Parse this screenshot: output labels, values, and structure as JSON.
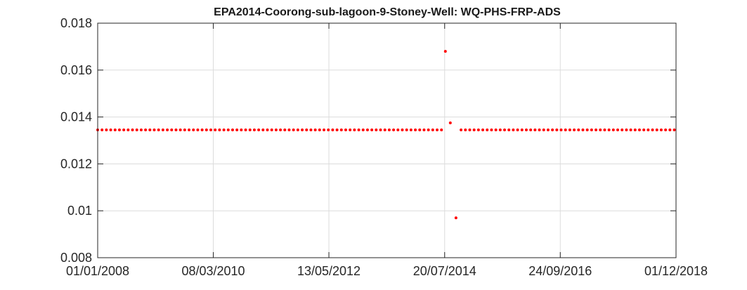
{
  "chart_data": {
    "type": "scatter",
    "title": "EPA2014-Coorong-sub-lagoon-9-Stoney-Well: WQ-PHS-FRP-ADS",
    "xlabel": "",
    "ylabel": "",
    "x_axis_type": "date",
    "xlim": [
      "2008-01-01",
      "2018-12-01"
    ],
    "ylim": [
      0.008,
      0.018
    ],
    "x_ticks": [
      "2008-01-01",
      "2010-03-08",
      "2012-05-13",
      "2014-07-20",
      "2016-09-24",
      "2018-12-01"
    ],
    "x_tick_labels": [
      "01/01/2008",
      "08/03/2010",
      "13/05/2012",
      "20/07/2014",
      "24/09/2016",
      "01/12/2018"
    ],
    "y_ticks": [
      0.008,
      0.01,
      0.012,
      0.014,
      0.016,
      0.018
    ],
    "y_tick_labels": [
      "0.008",
      "0.01",
      "0.012",
      "0.014",
      "0.016",
      "0.018"
    ],
    "grid": true,
    "marker_color": "#ff0000",
    "series": [
      {
        "baseline_value": 0.01345,
        "baseline_segments": [
          {
            "start": "2008-01-01",
            "end": "2014-07-15",
            "interval_days": 30
          },
          {
            "start": "2014-11-10",
            "end": "2018-12-01",
            "interval_days": 30
          }
        ],
        "outliers": [
          {
            "x": "2014-07-25",
            "y": 0.0168
          },
          {
            "x": "2014-08-28",
            "y": 0.01375
          },
          {
            "x": "2014-10-06",
            "y": 0.0097
          }
        ]
      }
    ]
  }
}
